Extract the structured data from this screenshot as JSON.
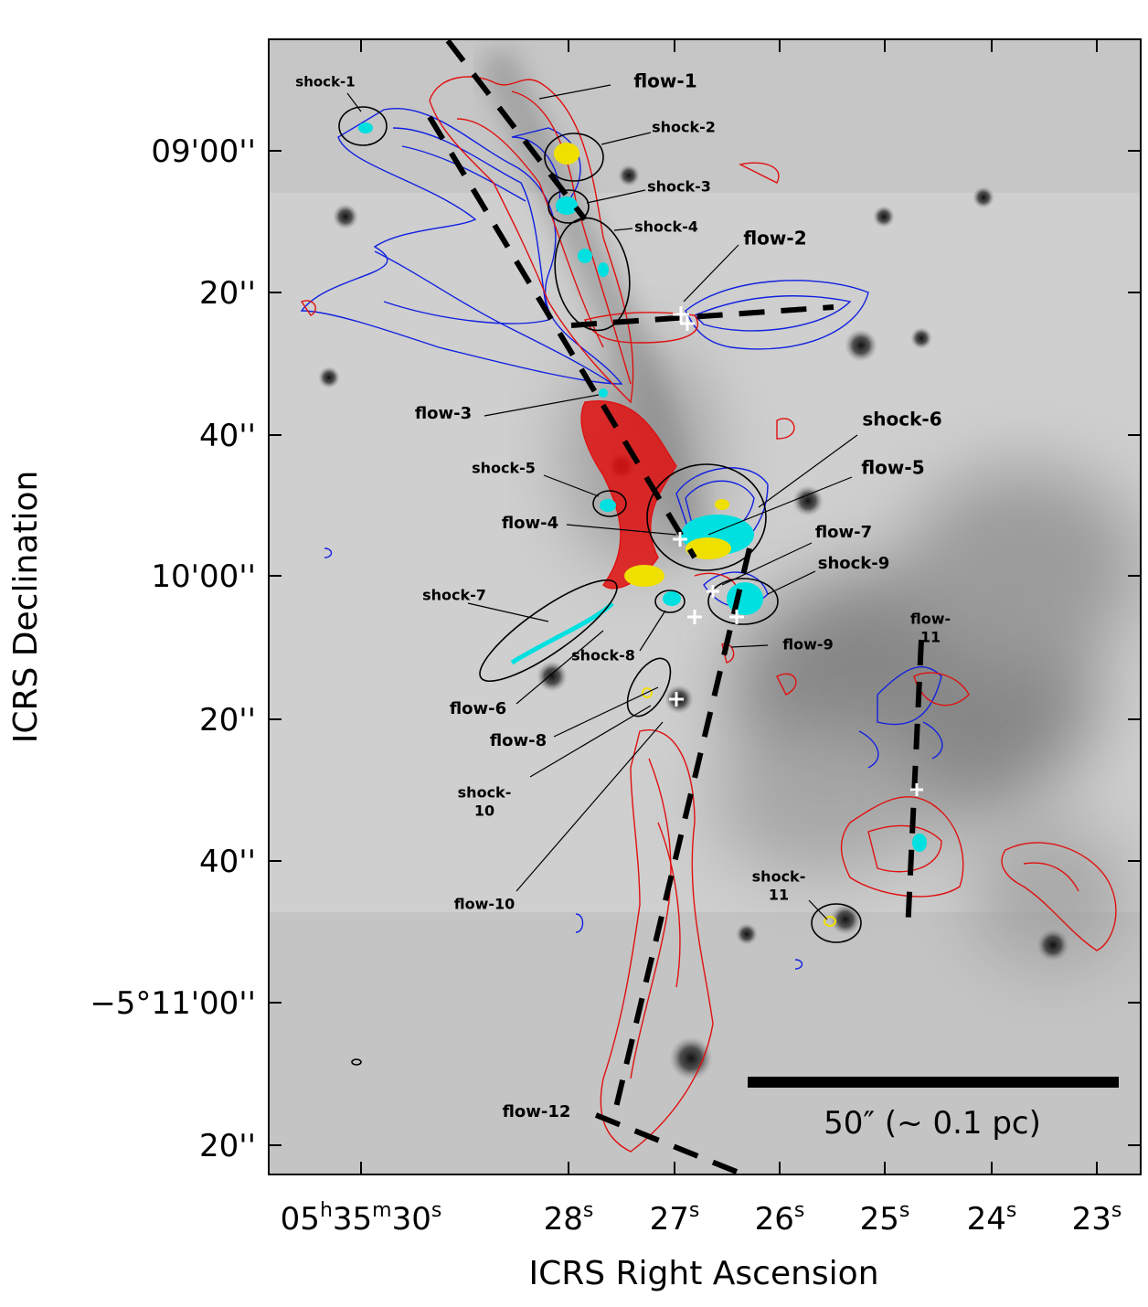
{
  "axes": {
    "y_title": "ICRS Declination",
    "x_title": "ICRS Right Ascension",
    "y_ticks": [
      "09'00''",
      "20''",
      "40''",
      "10'00''",
      "20''",
      "40''",
      "−5°11'00''",
      "20''"
    ],
    "x_ticks": [
      [
        "05",
        "h",
        "35",
        "m",
        "30",
        "s"
      ],
      [
        "28",
        "s"
      ],
      [
        "27",
        "s"
      ],
      [
        "26",
        "s"
      ],
      [
        "25",
        "s"
      ],
      [
        "24",
        "s"
      ],
      [
        "23",
        "s"
      ]
    ]
  },
  "annotations": [
    {
      "lines": [
        "shock-1"
      ]
    },
    {
      "lines": [
        "flow-1"
      ]
    },
    {
      "lines": [
        "shock-2"
      ]
    },
    {
      "lines": [
        "shock-3"
      ]
    },
    {
      "lines": [
        "shock-4"
      ]
    },
    {
      "lines": [
        "flow-2"
      ]
    },
    {
      "lines": [
        "flow-3"
      ]
    },
    {
      "lines": [
        "shock-6"
      ]
    },
    {
      "lines": [
        "shock-5"
      ]
    },
    {
      "lines": [
        "flow-5"
      ]
    },
    {
      "lines": [
        "flow-4"
      ]
    },
    {
      "lines": [
        "flow-7"
      ]
    },
    {
      "lines": [
        "shock-9"
      ]
    },
    {
      "lines": [
        "shock-7"
      ]
    },
    {
      "lines": [
        "flow-",
        "11"
      ]
    },
    {
      "lines": [
        "flow-9"
      ]
    },
    {
      "lines": [
        "shock-8"
      ]
    },
    {
      "lines": [
        "flow-6"
      ]
    },
    {
      "lines": [
        "flow-8"
      ]
    },
    {
      "lines": [
        "shock-",
        "10"
      ]
    },
    {
      "lines": [
        "flow-10"
      ]
    },
    {
      "lines": [
        "shock-",
        "11"
      ]
    },
    {
      "lines": [
        "flow-12"
      ]
    }
  ],
  "scale_bar": "50″ (~ 0.1 pc)"
}
